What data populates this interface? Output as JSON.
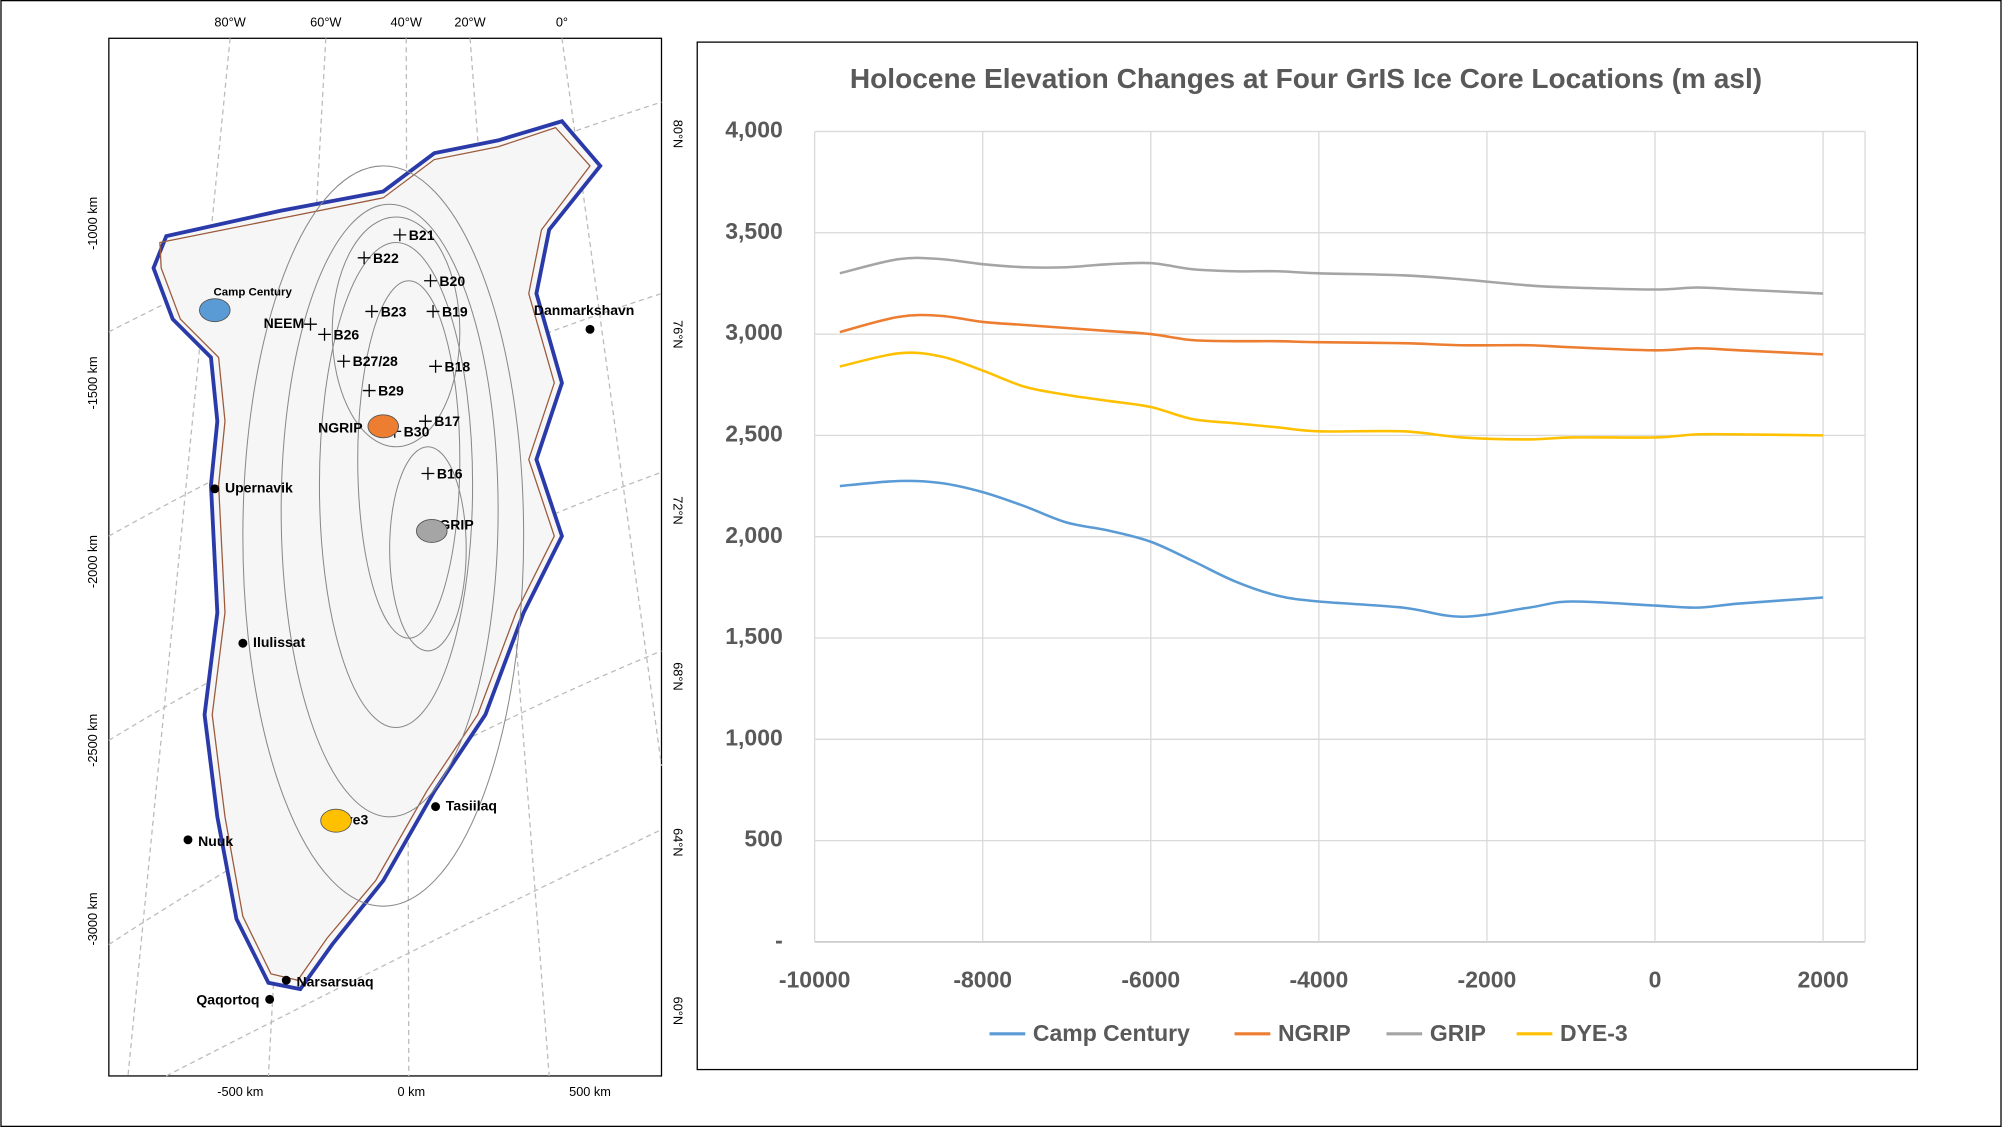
{
  "chart_data": {
    "type": "line",
    "title": "Holocene Elevation Changes at Four GrIS Ice Core Locations (m asl)",
    "x": [
      -9700,
      -9000,
      -8500,
      -8000,
      -7500,
      -7000,
      -6500,
      -6000,
      -5500,
      -5000,
      -4500,
      -4000,
      -3000,
      -2300,
      -1500,
      -1000,
      0,
      500,
      1000,
      2000
    ],
    "series": [
      {
        "name": "Camp Century",
        "color": "#5b9bd5",
        "values": [
          2250,
          2275,
          2265,
          2220,
          2150,
          2070,
          2030,
          1975,
          1880,
          1780,
          1710,
          1680,
          1650,
          1605,
          1650,
          1680,
          1660,
          1650,
          1670,
          1700
        ]
      },
      {
        "name": "NGRIP",
        "color": "#ed7d31",
        "values": [
          3010,
          3085,
          3090,
          3060,
          3045,
          3030,
          3015,
          3000,
          2970,
          2965,
          2965,
          2960,
          2955,
          2945,
          2945,
          2935,
          2920,
          2930,
          2920,
          2900
        ]
      },
      {
        "name": "GRIP",
        "color": "#a5a5a5",
        "values": [
          3300,
          3370,
          3370,
          3345,
          3330,
          3330,
          3345,
          3350,
          3320,
          3310,
          3310,
          3300,
          3290,
          3270,
          3240,
          3230,
          3220,
          3230,
          3220,
          3200
        ]
      },
      {
        "name": "DYE-3",
        "color": "#ffc000",
        "values": [
          2840,
          2905,
          2890,
          2820,
          2740,
          2700,
          2670,
          2640,
          2580,
          2560,
          2540,
          2520,
          2520,
          2490,
          2480,
          2490,
          2490,
          2505,
          2505,
          2500
        ]
      }
    ],
    "xlim": [
      -10000,
      2500
    ],
    "xticks": [
      -10000,
      -8000,
      -6000,
      -4000,
      -2000,
      0,
      2000
    ],
    "ylim": [
      0,
      4000
    ],
    "yticks": [
      {
        "value": 0,
        "label": "-"
      },
      500,
      {
        "value": 1000,
        "label": "1,000"
      },
      {
        "value": 1500,
        "label": "1,500"
      },
      {
        "value": 2000,
        "label": "2,000"
      },
      {
        "value": 2500,
        "label": "2,500"
      },
      {
        "value": 3000,
        "label": "3,000"
      },
      {
        "value": 3500,
        "label": "3,500"
      },
      {
        "value": 4000,
        "label": "4,000"
      }
    ],
    "grid": true,
    "legend": "bottom"
  },
  "map": {
    "sites": [
      "Camp Century",
      "NGRIP",
      "GRIP",
      "Dye3"
    ],
    "boreholes": [
      "B21",
      "B22",
      "B20",
      "B23",
      "B19",
      "NEEM",
      "B26",
      "B27/28",
      "B18",
      "B29",
      "B17",
      "B30",
      "B16"
    ],
    "towns": [
      "Danmarkshavn",
      "Upernavik",
      "Ilulissat",
      "Nuuk",
      "Tasiilaq",
      "Narsarsuaq",
      "Qaqortoq"
    ],
    "lon_labels": [
      "80°W",
      "60°W",
      "40°W",
      "20°W",
      "0°"
    ],
    "lat_labels": [
      "80°N",
      "76°N",
      "72°N",
      "68°N",
      "64°N",
      "60°N"
    ],
    "km_y": [
      "-1000 km",
      "-1500 km",
      "-2000 km",
      "-2500 km",
      "-3000 km"
    ],
    "km_x": [
      "-500 km",
      "0 km",
      "500 km"
    ]
  }
}
